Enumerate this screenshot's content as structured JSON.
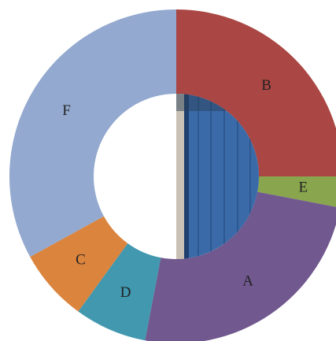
{
  "chart_data": {
    "type": "donut",
    "categories": [
      "B",
      "E",
      "A",
      "D",
      "C",
      "F"
    ],
    "values": [
      25,
      3,
      25,
      7,
      7,
      33
    ],
    "colors": [
      "#aa4643",
      "#89a54e",
      "#71588f",
      "#4198af",
      "#db843d",
      "#93a9cf"
    ]
  }
}
